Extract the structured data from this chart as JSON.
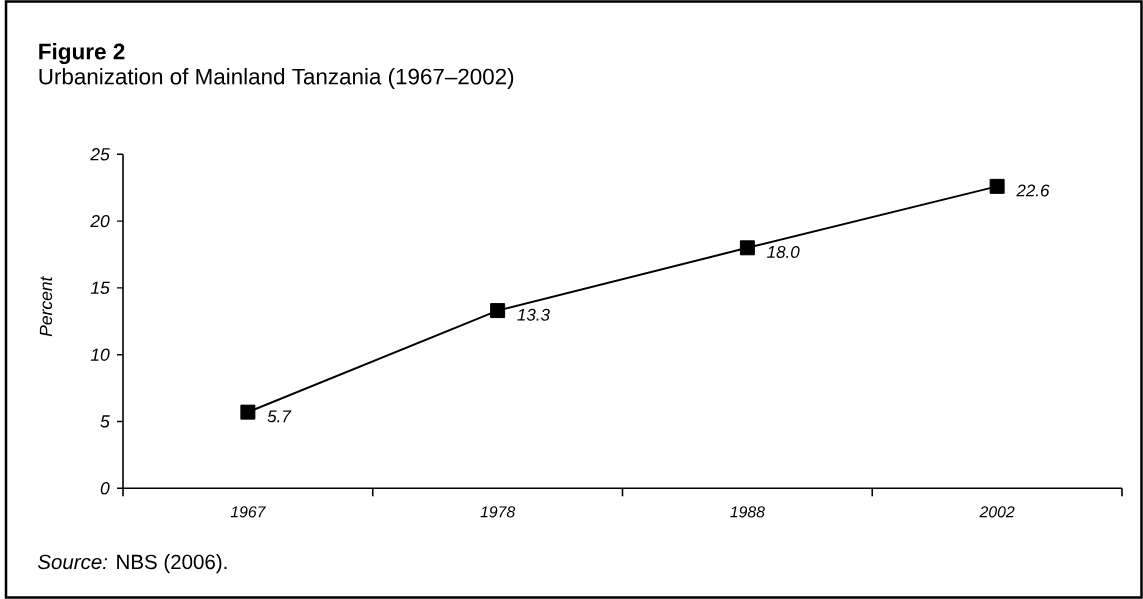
{
  "chart_data": {
    "type": "line",
    "title": "Figure 2",
    "subtitle": "Urbanization of Mainland Tanzania (1967–2002)",
    "ylabel": "Percent",
    "categories": [
      "1967",
      "1978",
      "1988",
      "2002"
    ],
    "values": [
      5.7,
      13.3,
      18.0,
      22.6
    ],
    "value_labels": [
      "5.7",
      "13.3",
      "18.0",
      "22.6"
    ],
    "color": "#000000",
    "ylim": [
      0,
      25
    ],
    "yticks": [
      0,
      5,
      10,
      15,
      20,
      25
    ],
    "marker": "square",
    "line_style": "solid",
    "annotations": [
      "*Source:* NBS (2006)."
    ]
  }
}
